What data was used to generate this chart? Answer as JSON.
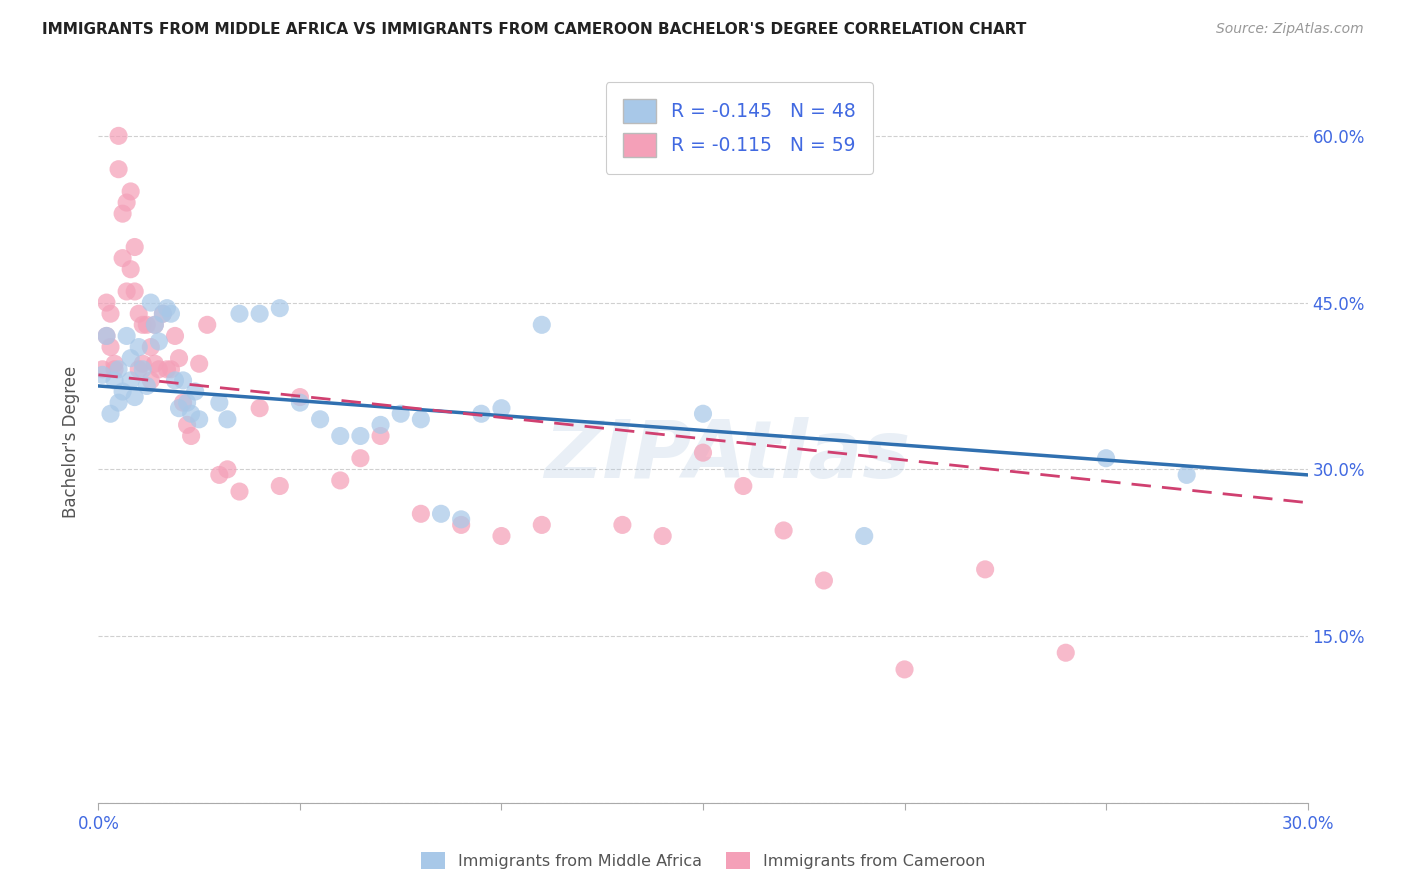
{
  "title": "IMMIGRANTS FROM MIDDLE AFRICA VS IMMIGRANTS FROM CAMEROON BACHELOR'S DEGREE CORRELATION CHART",
  "source": "Source: ZipAtlas.com",
  "ylabel": "Bachelor's Degree",
  "xlim": [
    0.0,
    0.3
  ],
  "ylim": [
    0.0,
    0.65
  ],
  "R_blue": -0.145,
  "N_blue": 48,
  "R_pink": -0.115,
  "N_pink": 59,
  "blue_color": "#a8c8e8",
  "pink_color": "#f4a0b8",
  "blue_line_color": "#3070b0",
  "pink_line_color": "#d04070",
  "watermark": "ZIPAtlas",
  "blue_points_x": [
    0.001,
    0.002,
    0.003,
    0.004,
    0.005,
    0.005,
    0.006,
    0.007,
    0.008,
    0.008,
    0.009,
    0.01,
    0.011,
    0.012,
    0.013,
    0.014,
    0.015,
    0.016,
    0.017,
    0.018,
    0.019,
    0.02,
    0.021,
    0.022,
    0.023,
    0.024,
    0.025,
    0.03,
    0.032,
    0.035,
    0.04,
    0.045,
    0.05,
    0.055,
    0.06,
    0.065,
    0.07,
    0.075,
    0.08,
    0.085,
    0.09,
    0.095,
    0.1,
    0.11,
    0.15,
    0.19,
    0.25,
    0.27
  ],
  "blue_points_y": [
    0.385,
    0.42,
    0.35,
    0.38,
    0.39,
    0.36,
    0.37,
    0.42,
    0.38,
    0.4,
    0.365,
    0.41,
    0.39,
    0.375,
    0.45,
    0.43,
    0.415,
    0.44,
    0.445,
    0.44,
    0.38,
    0.355,
    0.38,
    0.36,
    0.35,
    0.37,
    0.345,
    0.36,
    0.345,
    0.44,
    0.44,
    0.445,
    0.36,
    0.345,
    0.33,
    0.33,
    0.34,
    0.35,
    0.345,
    0.26,
    0.255,
    0.35,
    0.355,
    0.43,
    0.35,
    0.24,
    0.31,
    0.295
  ],
  "pink_points_x": [
    0.001,
    0.002,
    0.002,
    0.003,
    0.003,
    0.004,
    0.004,
    0.005,
    0.005,
    0.006,
    0.006,
    0.007,
    0.007,
    0.008,
    0.008,
    0.009,
    0.009,
    0.01,
    0.01,
    0.011,
    0.011,
    0.012,
    0.013,
    0.013,
    0.014,
    0.014,
    0.015,
    0.016,
    0.017,
    0.018,
    0.019,
    0.02,
    0.021,
    0.022,
    0.023,
    0.025,
    0.027,
    0.03,
    0.032,
    0.035,
    0.04,
    0.045,
    0.05,
    0.06,
    0.065,
    0.07,
    0.08,
    0.09,
    0.1,
    0.11,
    0.13,
    0.14,
    0.15,
    0.16,
    0.17,
    0.18,
    0.2,
    0.22,
    0.24
  ],
  "pink_points_y": [
    0.39,
    0.42,
    0.45,
    0.41,
    0.44,
    0.395,
    0.39,
    0.6,
    0.57,
    0.53,
    0.49,
    0.54,
    0.46,
    0.55,
    0.48,
    0.46,
    0.5,
    0.39,
    0.44,
    0.43,
    0.395,
    0.43,
    0.38,
    0.41,
    0.395,
    0.43,
    0.39,
    0.44,
    0.39,
    0.39,
    0.42,
    0.4,
    0.36,
    0.34,
    0.33,
    0.395,
    0.43,
    0.295,
    0.3,
    0.28,
    0.355,
    0.285,
    0.365,
    0.29,
    0.31,
    0.33,
    0.26,
    0.25,
    0.24,
    0.25,
    0.25,
    0.24,
    0.315,
    0.285,
    0.245,
    0.2,
    0.12,
    0.21,
    0.135
  ]
}
